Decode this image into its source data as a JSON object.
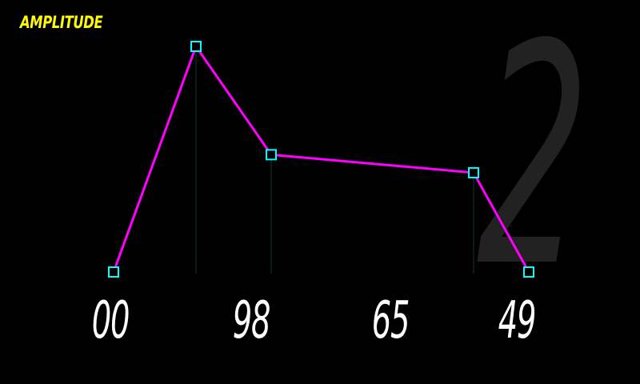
{
  "screen": {
    "title": "AMPLITUDE",
    "page_number": "2"
  },
  "envelope": {
    "point_count": 5,
    "levels": [
      0,
      1.0,
      0.52,
      0.44,
      0
    ]
  },
  "readouts": [
    "00",
    "98",
    "65",
    "49"
  ],
  "colors": {
    "background": "#000000",
    "title": "#ffff00",
    "line": "#ff00ff",
    "node": "#00ffff",
    "guide": "#0e3a3a",
    "readout": "#ffffff",
    "page_number": "#222222"
  }
}
